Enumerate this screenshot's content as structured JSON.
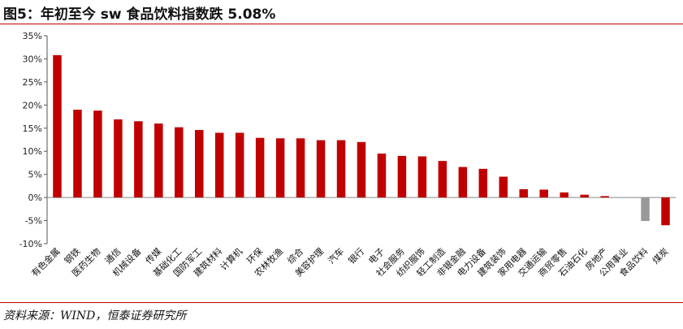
{
  "title": "图5：年初至今 sw 食品饮料指数跌 5.08%",
  "source": "资料来源：WIND，恒泰证券研究所",
  "colors": {
    "positive": "#c00000",
    "negative_highlight": "#999999",
    "rule": "#c00000"
  },
  "chart_data": {
    "type": "bar",
    "title": "年初至今 sw 食品饮料指数跌 5.08%",
    "xlabel": "",
    "ylabel": "",
    "ylim": [
      -10,
      35
    ],
    "yticks": [
      -10,
      -5,
      0,
      5,
      10,
      15,
      20,
      25,
      30,
      35
    ],
    "ytick_labels": [
      "-10%",
      "-5%",
      "0%",
      "5%",
      "10%",
      "15%",
      "20%",
      "25%",
      "30%",
      "35%"
    ],
    "grid": false,
    "legend": "none",
    "categories": [
      "有色金属",
      "钢铁",
      "医药生物",
      "通信",
      "机械设备",
      "传媒",
      "基础化工",
      "国防军工",
      "建筑材料",
      "计算机",
      "环保",
      "农林牧渔",
      "综合",
      "美容护理",
      "汽车",
      "银行",
      "电子",
      "社会服务",
      "纺织服饰",
      "轻工制造",
      "非银金融",
      "电力设备",
      "建筑装饰",
      "家用电器",
      "交通运输",
      "商贸零售",
      "石油石化",
      "房地产",
      "公用事业",
      "食品饮料",
      "煤炭"
    ],
    "values": [
      30.8,
      19.0,
      18.8,
      16.9,
      16.5,
      16.0,
      15.2,
      14.6,
      14.0,
      14.0,
      12.9,
      12.8,
      12.8,
      12.4,
      12.4,
      12.0,
      9.5,
      9.0,
      8.9,
      7.9,
      6.6,
      6.2,
      4.5,
      1.8,
      1.7,
      1.1,
      0.6,
      0.3,
      0.0,
      -5.08,
      -6.0
    ],
    "highlight": "食品饮料"
  }
}
